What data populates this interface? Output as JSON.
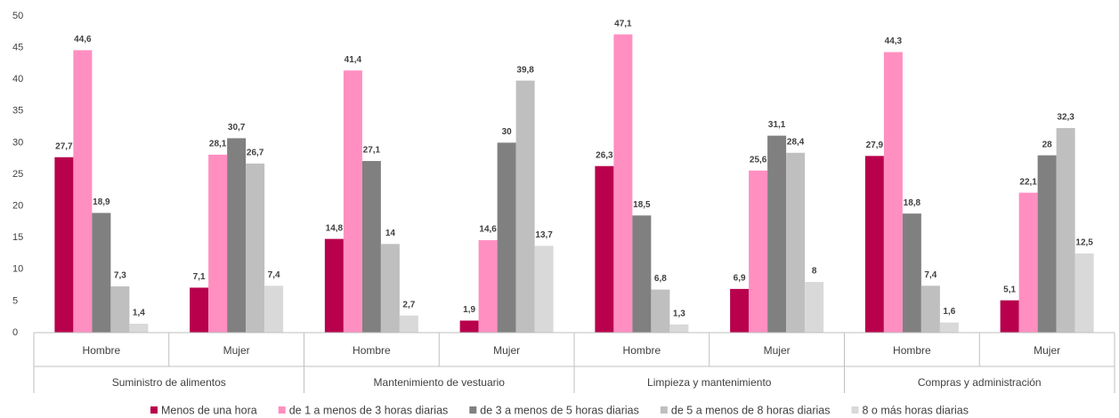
{
  "chart_data": {
    "type": "bar",
    "categories": [
      "Hombre",
      "Mujer",
      "Hombre",
      "Mujer",
      "Hombre",
      "Mujer",
      "Hombre",
      "Mujer"
    ],
    "groups": [
      "Suministro de alimentos",
      "Mantenimiento de vestuario",
      "Limpieza y mantenimiento",
      "Compras y administración"
    ],
    "series": [
      {
        "name": "Menos de una hora",
        "color": "#b8004c",
        "values": [
          27.7,
          7.1,
          14.8,
          1.9,
          26.3,
          6.9,
          27.9,
          5.1
        ],
        "value_labels": [
          "27,7",
          "7,1",
          "14,8",
          "1,9",
          "26,3",
          "6,9",
          "27,9",
          "5,1"
        ]
      },
      {
        "name": "de 1 a menos de 3 horas diarias",
        "color": "#ff8fc1",
        "values": [
          44.6,
          28.1,
          41.4,
          14.6,
          47.1,
          25.6,
          44.3,
          22.1
        ],
        "value_labels": [
          "44,6",
          "28,1",
          "41,4",
          "14,6",
          "47,1",
          "25,6",
          "44,3",
          "22,1"
        ]
      },
      {
        "name": "de 3 a menos de 5 horas diarias",
        "color": "#808080",
        "values": [
          18.9,
          30.7,
          27.1,
          30,
          18.5,
          31.1,
          18.8,
          28
        ],
        "value_labels": [
          "18,9",
          "30,7",
          "27,1",
          "30",
          "18,5",
          "31,1",
          "18,8",
          "28"
        ]
      },
      {
        "name": "de 5 a menos de 8 horas diarias",
        "color": "#bfbfbf",
        "values": [
          7.3,
          26.7,
          14,
          39.8,
          6.8,
          28.4,
          7.4,
          32.3
        ],
        "value_labels": [
          "7,3",
          "26,7",
          "14",
          "39,8",
          "6,8",
          "28,4",
          "7,4",
          "32,3"
        ]
      },
      {
        "name": "8 o más horas diarias",
        "color": "#d9d9d9",
        "values": [
          1.4,
          7.4,
          2.7,
          13.7,
          1.3,
          8,
          1.6,
          12.5
        ],
        "value_labels": [
          "1,4",
          "7,4",
          "2,7",
          "13,7",
          "1,3",
          "8",
          "1,6",
          "12,5"
        ]
      }
    ],
    "ylim": [
      0,
      50
    ],
    "yticks": [
      0,
      5,
      10,
      15,
      20,
      25,
      30,
      35,
      40,
      45,
      50
    ],
    "grid": false,
    "legend": "bottom"
  }
}
